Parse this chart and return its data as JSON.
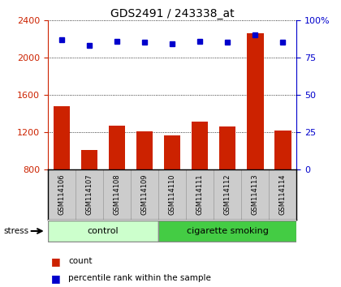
{
  "title": "GDS2491 / 243338_at",
  "samples": [
    "GSM114106",
    "GSM114107",
    "GSM114108",
    "GSM114109",
    "GSM114110",
    "GSM114111",
    "GSM114112",
    "GSM114113",
    "GSM114114"
  ],
  "counts": [
    1480,
    1010,
    1270,
    1210,
    1160,
    1310,
    1260,
    2260,
    1220
  ],
  "percentile_ranks": [
    87,
    83,
    86,
    85,
    84,
    86,
    85,
    90,
    85
  ],
  "groups": [
    {
      "label": "control",
      "start": 0,
      "end": 4,
      "color": "#ccffcc"
    },
    {
      "label": "cigarette smoking",
      "start": 4,
      "end": 9,
      "color": "#44cc44"
    }
  ],
  "ylim_left": [
    800,
    2400
  ],
  "ylim_right": [
    0,
    100
  ],
  "yticks_left": [
    800,
    1200,
    1600,
    2000,
    2400
  ],
  "yticks_right": [
    0,
    25,
    50,
    75,
    100
  ],
  "bar_color": "#cc2200",
  "dot_color": "#0000cc",
  "bar_bottom": 800,
  "label_area_color": "#cccccc",
  "stress_label": "stress",
  "legend_count": "count",
  "legend_pct": "percentile rank within the sample"
}
